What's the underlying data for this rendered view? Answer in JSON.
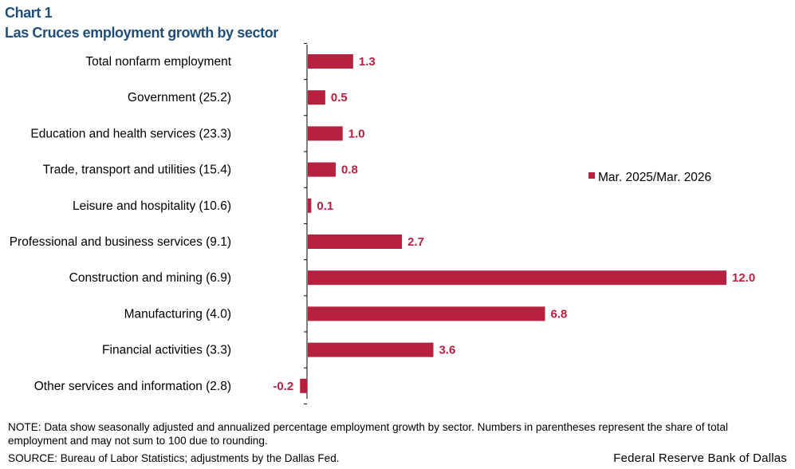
{
  "chart_label": "Chart 1",
  "chart_data": {
    "type": "bar",
    "orientation": "horizontal",
    "title": "Las Cruces employment growth by sector",
    "categories": [
      "Total nonfarm employment",
      "Government (25.2)",
      "Education and health services (23.3)",
      "Trade, transport and utilities (15.4)",
      "Leisure and hospitality (10.6)",
      "Professional and business services (9.1)",
      "Construction and mining (6.9)",
      "Manufacturing (4.0)",
      "Financial activities (3.3)",
      "Other services and information (2.8)"
    ],
    "series": [
      {
        "name": "Mar. 2025/Mar. 2026",
        "color": "#b5213f",
        "values": [
          1.3,
          0.5,
          1.0,
          0.8,
          0.1,
          2.7,
          12.0,
          6.8,
          3.6,
          -0.2
        ],
        "labels": [
          "1.3",
          "0.5",
          "1.0",
          "0.8",
          "0.1",
          "2.7",
          "12.0",
          "6.8",
          "3.6",
          "-0.2"
        ]
      }
    ],
    "xlim": [
      -0.2,
      12.0
    ],
    "grid": false,
    "legend": "right"
  },
  "note": "NOTE: Data show seasonally adjusted and annualized percentage employment growth by sector. Numbers in parentheses represent the share of total employment and may not sum to 100 due to rounding.",
  "source": "SOURCE: Bureau of Labor Statistics; adjustments by the Dallas Fed.",
  "organization": "Federal Reserve Bank of Dallas"
}
